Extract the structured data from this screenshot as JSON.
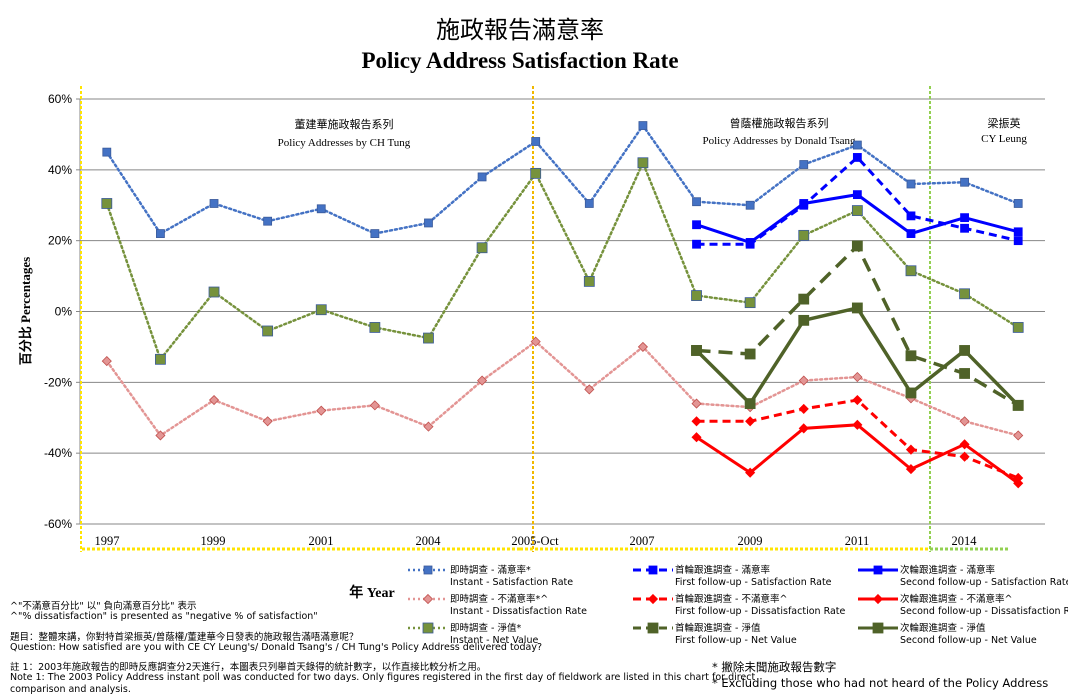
{
  "title": {
    "zh": "施政報告滿意率",
    "en": "Policy Address  Satisfaction Rate"
  },
  "chart_data": {
    "type": "line",
    "ylabel": "百分比 Percentages",
    "xlabel": "年 Year",
    "ylim": [
      -60,
      60
    ],
    "y_ticks": [
      "60%",
      "40%",
      "20%",
      "0%",
      "-20%",
      "-40%",
      "-60%"
    ],
    "x_ticks": [
      "1997",
      "1999",
      "2001",
      "2004",
      "2005-Oct",
      "2007",
      "2009",
      "2011",
      "2014"
    ],
    "grid": true,
    "periods": [
      {
        "zh": "董建華施政報告系列",
        "en": "Policy Addresses by CH Tung"
      },
      {
        "zh": "曾蔭權施政報告系列",
        "en": "Policy Addresses by Donald Tsang"
      },
      {
        "zh": "梁振英",
        "en": "CY Leung"
      }
    ],
    "series": [
      {
        "zh": "即時調查 - 滿意率*",
        "name": "Instant - Satisfaction Rate",
        "color": "#4472C4",
        "style": "dotted",
        "marker": "square",
        "x": [
          0,
          1,
          2,
          3,
          4,
          5,
          6,
          7,
          8,
          9,
          10,
          11,
          12,
          13,
          14,
          15,
          16,
          17
        ],
        "values": [
          45,
          22,
          30.5,
          25.5,
          29,
          22,
          25,
          38,
          48,
          30.5,
          52.5,
          31,
          30,
          41.5,
          47,
          36,
          36.5,
          30.5
        ]
      },
      {
        "zh": "即時調查 - 不滿意率*^",
        "name": "Instant - Dissatisfaction Rate",
        "color": "#E39594",
        "style": "dotted",
        "marker": "diamond",
        "x": [
          0,
          1,
          2,
          3,
          4,
          5,
          6,
          7,
          8,
          9,
          10,
          11,
          12,
          13,
          14,
          15,
          16,
          17
        ],
        "values": [
          -14,
          -35,
          -25,
          -31,
          -28,
          -26.5,
          -32.5,
          -19.5,
          -8.5,
          -22,
          -10,
          -26,
          -27,
          -19.5,
          -18.5,
          -24.5,
          -31,
          -35
        ]
      },
      {
        "zh": "即時調查 - 淨值*",
        "name": "Instant - Net Value",
        "color": "#76923C",
        "style": "dotted",
        "marker": "square",
        "x": [
          0,
          1,
          2,
          3,
          4,
          5,
          6,
          7,
          8,
          9,
          10,
          11,
          12,
          13,
          14,
          15,
          16,
          17
        ],
        "values": [
          30.5,
          -13.5,
          5.5,
          -5.5,
          0.5,
          -4.5,
          -7.5,
          18,
          39,
          8.5,
          42,
          4.5,
          2.5,
          21.5,
          28.5,
          11.5,
          5,
          -4.5
        ]
      },
      {
        "zh": "首輪跟進調查 - 滿意率",
        "name": "First follow-up - Satisfaction Rate",
        "color": "#0000FF",
        "style": "dashed",
        "marker": "square",
        "x": [
          11,
          12,
          13,
          14,
          15,
          16,
          17
        ],
        "values": [
          19,
          19,
          30,
          43.5,
          27,
          23.5,
          20
        ]
      },
      {
        "zh": "首輪跟進調查 - 不滿意率^",
        "name": "First follow-up - Dissatisfaction Rate",
        "color": "#FF0000",
        "style": "dashed",
        "marker": "diamond",
        "x": [
          11,
          12,
          13,
          14,
          15,
          16,
          17
        ],
        "values": [
          -31,
          -31,
          -27.5,
          -25,
          -39,
          -41,
          -47
        ]
      },
      {
        "zh": "首輪跟進調查 - 淨值",
        "name": "First follow-up - Net Value",
        "color": "#4F6228",
        "style": "dashed",
        "marker": "square",
        "x": [
          11,
          12,
          13,
          14,
          15,
          16,
          17
        ],
        "values": [
          -11,
          -12,
          3.5,
          18.5,
          -12.5,
          -17.5,
          -26.5
        ]
      },
      {
        "zh": "次輪跟進調查 - 滿意率",
        "name": "Second follow-up - Satisfaction Rate",
        "color": "#0000FF",
        "style": "solid",
        "marker": "square",
        "x": [
          11,
          12,
          13,
          14,
          15,
          16,
          17
        ],
        "values": [
          24.5,
          19.5,
          30.5,
          33,
          22,
          26.5,
          22.5
        ]
      },
      {
        "zh": "次輪跟進調查 - 不滿意率^",
        "name": "Second follow-up - Dissatisfaction Rate",
        "color": "#FF0000",
        "style": "solid",
        "marker": "diamond",
        "x": [
          11,
          12,
          13,
          14,
          15,
          16,
          17
        ],
        "values": [
          -35.5,
          -45.5,
          -33,
          -32,
          -44.5,
          -37.5,
          -48.5
        ]
      },
      {
        "zh": "次輪跟進調查 - 淨值",
        "name": "Second follow-up - Net Value",
        "color": "#4F6228",
        "style": "solid",
        "marker": "square",
        "x": [
          11,
          12,
          13,
          14,
          15,
          16,
          17
        ],
        "values": [
          -11,
          -26,
          -2.5,
          1,
          -23,
          -11,
          -26.5
        ]
      }
    ]
  },
  "notes": {
    "pct_zh": "^\"不滿意百分比\" 以\" 負向滿意百分比\" 表示",
    "pct_en": "^\"% dissatisfaction\"  is presented  as \"negative % of satisfaction\"",
    "question_zh": "題目：整體來講，你對特首梁振英/曾蔭權/董建華今日發表的施政報告滿唔滿意呢？",
    "question_en": "Question: How satisfied  are you with CE CY Leung's/ Donald Tsang's / CH Tung's Policy Address  delivered  today?",
    "note1_zh": "註 1：2003年施政報告的即時反應調查分2天進行，本圖表只列舉首天錄得的統計數字，以作直接比較分析之用。",
    "note1_en_1": "Note 1: The 2003 Policy Address instant poll was conducted for two days. Only figures registered in the first day of fieldwork are listed in this chart for direct",
    "note1_en_2": "comparison and analysis.",
    "excl_zh": "* 撇除未聞施政報告數字",
    "excl_en": "* Excluding  those who had not heard of the Policy Address"
  }
}
